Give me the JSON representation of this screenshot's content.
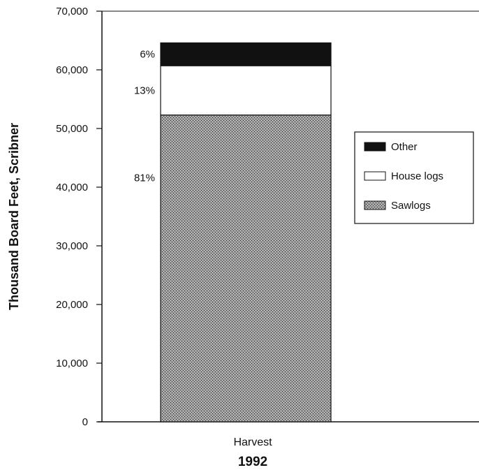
{
  "chart_data": {
    "type": "bar",
    "stacked": true,
    "title": "",
    "ylabel": "Thousand Board Feet, Scribner",
    "xlabel": "1992",
    "categories": [
      "Harvest"
    ],
    "ylim": [
      0,
      70000
    ],
    "yticks": [
      0,
      10000,
      20000,
      30000,
      40000,
      50000,
      60000,
      70000
    ],
    "ytick_labels": [
      "0",
      "10,000",
      "20,000",
      "30,000",
      "40,000",
      "50,000",
      "60,000",
      "70,000"
    ],
    "grid": false,
    "legend_position": "right",
    "series": [
      {
        "name": "Sawlogs",
        "values": [
          52300
        ],
        "percent_label": "81%",
        "color": "#8a8a8a",
        "pattern": "stipple"
      },
      {
        "name": "House logs",
        "values": [
          8400
        ],
        "percent_label": "13%",
        "color": "#ffffff",
        "pattern": "none"
      },
      {
        "name": "Other",
        "values": [
          3900
        ],
        "percent_label": "6%",
        "color": "#111111",
        "pattern": "solid"
      }
    ],
    "legend_order": [
      "Other",
      "House logs",
      "Sawlogs"
    ]
  }
}
